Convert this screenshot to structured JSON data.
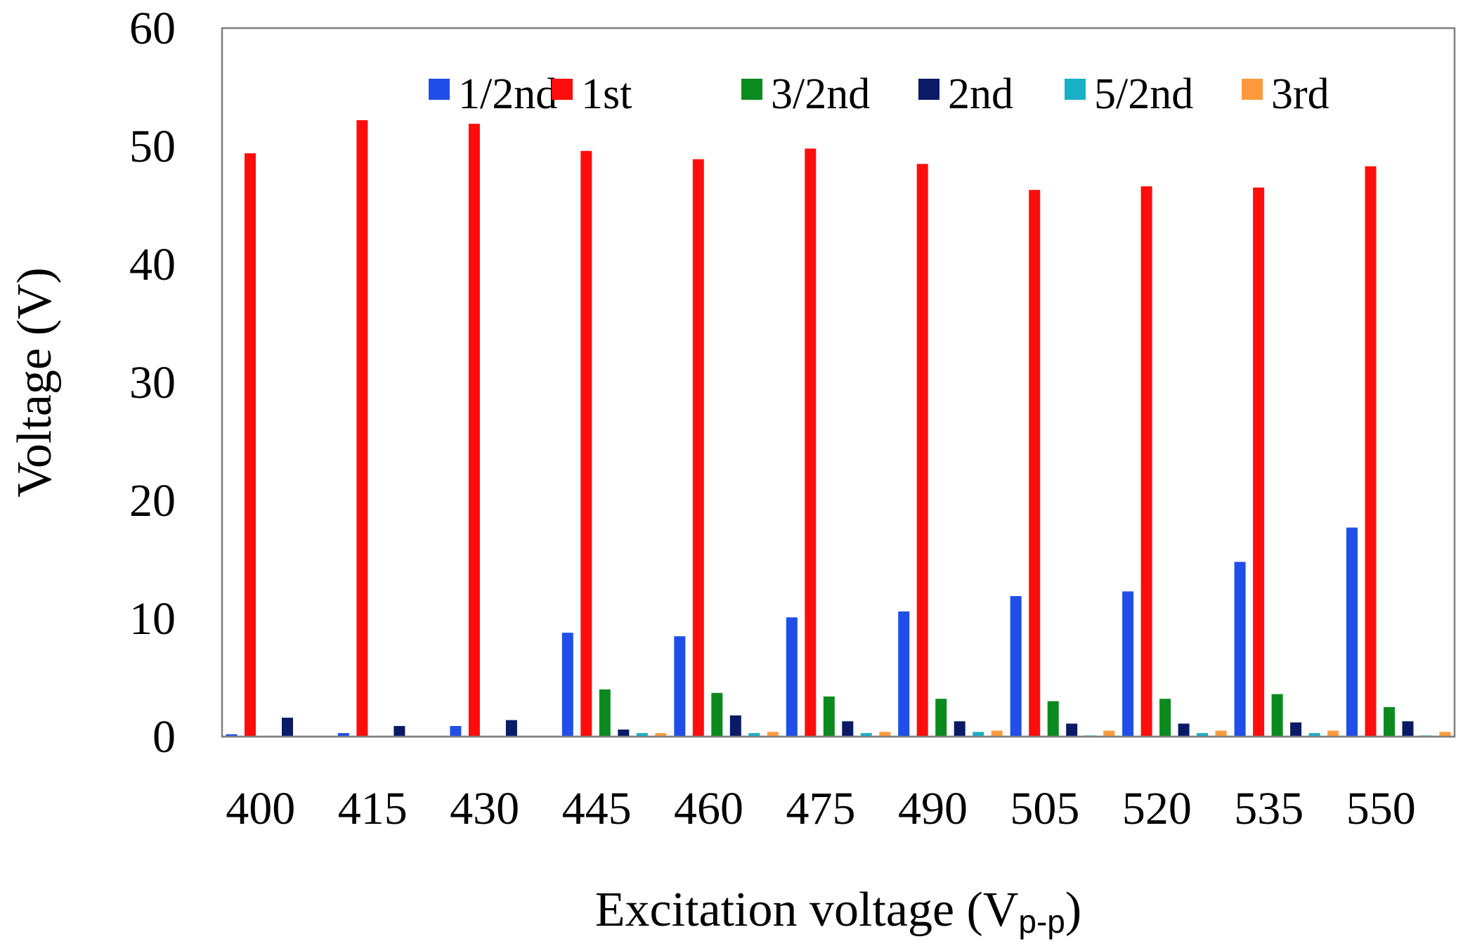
{
  "chart_data": {
    "type": "bar",
    "title": "",
    "xlabel": "Excitation voltage (V",
    "xlabel_subscript": "p-p",
    "xlabel_suffix": ")",
    "ylabel": "Voltage (V)",
    "ylim": [
      0,
      60
    ],
    "yticks": [
      0,
      10,
      20,
      30,
      40,
      50,
      60
    ],
    "grid": false,
    "legend_position": "top",
    "categories": [
      "400",
      "415",
      "430",
      "445",
      "460",
      "475",
      "490",
      "505",
      "520",
      "535",
      "550"
    ],
    "series": [
      {
        "name": "1/2nd",
        "color": "#1f4fe8",
        "values": [
          0.2,
          0.3,
          0.9,
          8.8,
          8.5,
          10.1,
          10.6,
          11.9,
          12.3,
          14.8,
          17.7
        ]
      },
      {
        "name": "1st",
        "color": "#ff0d0d",
        "values": [
          49.4,
          52.2,
          51.9,
          49.6,
          48.9,
          49.8,
          48.5,
          46.3,
          46.6,
          46.5,
          48.3
        ]
      },
      {
        "name": "3/2nd",
        "color": "#0b8a1e",
        "values": [
          0,
          0,
          0,
          4.0,
          3.7,
          3.4,
          3.2,
          3.0,
          3.2,
          3.6,
          2.5
        ]
      },
      {
        "name": "2nd",
        "color": "#0a1a66",
        "values": [
          1.6,
          0.9,
          1.4,
          0.6,
          1.8,
          1.3,
          1.3,
          1.1,
          1.1,
          1.2,
          1.3
        ]
      },
      {
        "name": "5/2nd",
        "color": "#1ab0c8",
        "values": [
          0,
          0,
          0,
          0.3,
          0.3,
          0.3,
          0.4,
          0.1,
          0.3,
          0.3,
          0.1
        ]
      },
      {
        "name": "3rd",
        "color": "#ff9a3c",
        "values": [
          0,
          0,
          0,
          0.3,
          0.4,
          0.4,
          0.5,
          0.5,
          0.5,
          0.5,
          0.4
        ]
      }
    ]
  }
}
